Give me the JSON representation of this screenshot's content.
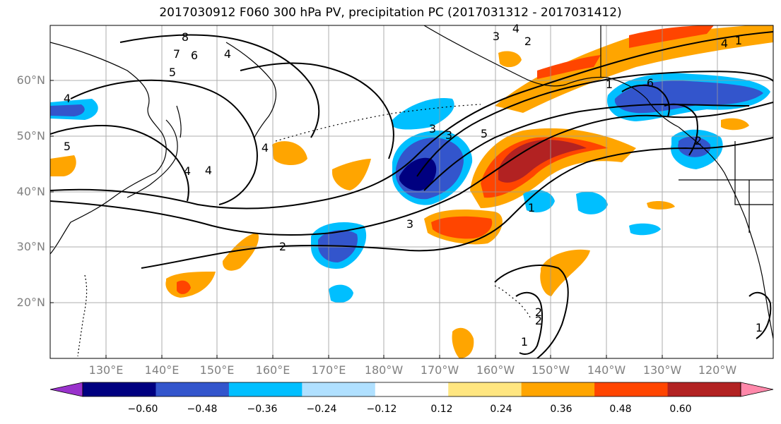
{
  "title": "2017030912 F060 300 hPa PV, precipitation PC (2017031312 - 2017031412)",
  "latitude_labels": [
    "60°N",
    "50°N",
    "40°N",
    "30°N",
    "20°N"
  ],
  "longitude_labels": [
    "130°E",
    "140°E",
    "150°E",
    "160°E",
    "170°E",
    "180°W",
    "170°W",
    "160°W",
    "150°W",
    "140°W",
    "130°W",
    "120°W"
  ],
  "colorbar": {
    "ticks": [
      "−0.60",
      "−0.48",
      "−0.36",
      "−0.24",
      "−0.12",
      "0.12",
      "0.24",
      "0.36",
      "0.48",
      "0.60"
    ],
    "colors": [
      "#9932cc",
      "#000080",
      "#3355cc",
      "#00bfff",
      "#b0e0ff",
      "#ffffff",
      "#ffe680",
      "#ffa500",
      "#ff4500",
      "#b22222",
      "#ff88aa"
    ]
  },
  "contour_labels": [
    "8",
    "7",
    "6",
    "4",
    "5",
    "4",
    "5",
    "4",
    "3",
    "4",
    "2",
    "5",
    "3",
    "3",
    "3",
    "2",
    "4",
    "4",
    "2",
    "1",
    "1",
    "6",
    "4",
    "2",
    "1",
    "1",
    "2",
    "1"
  ]
}
